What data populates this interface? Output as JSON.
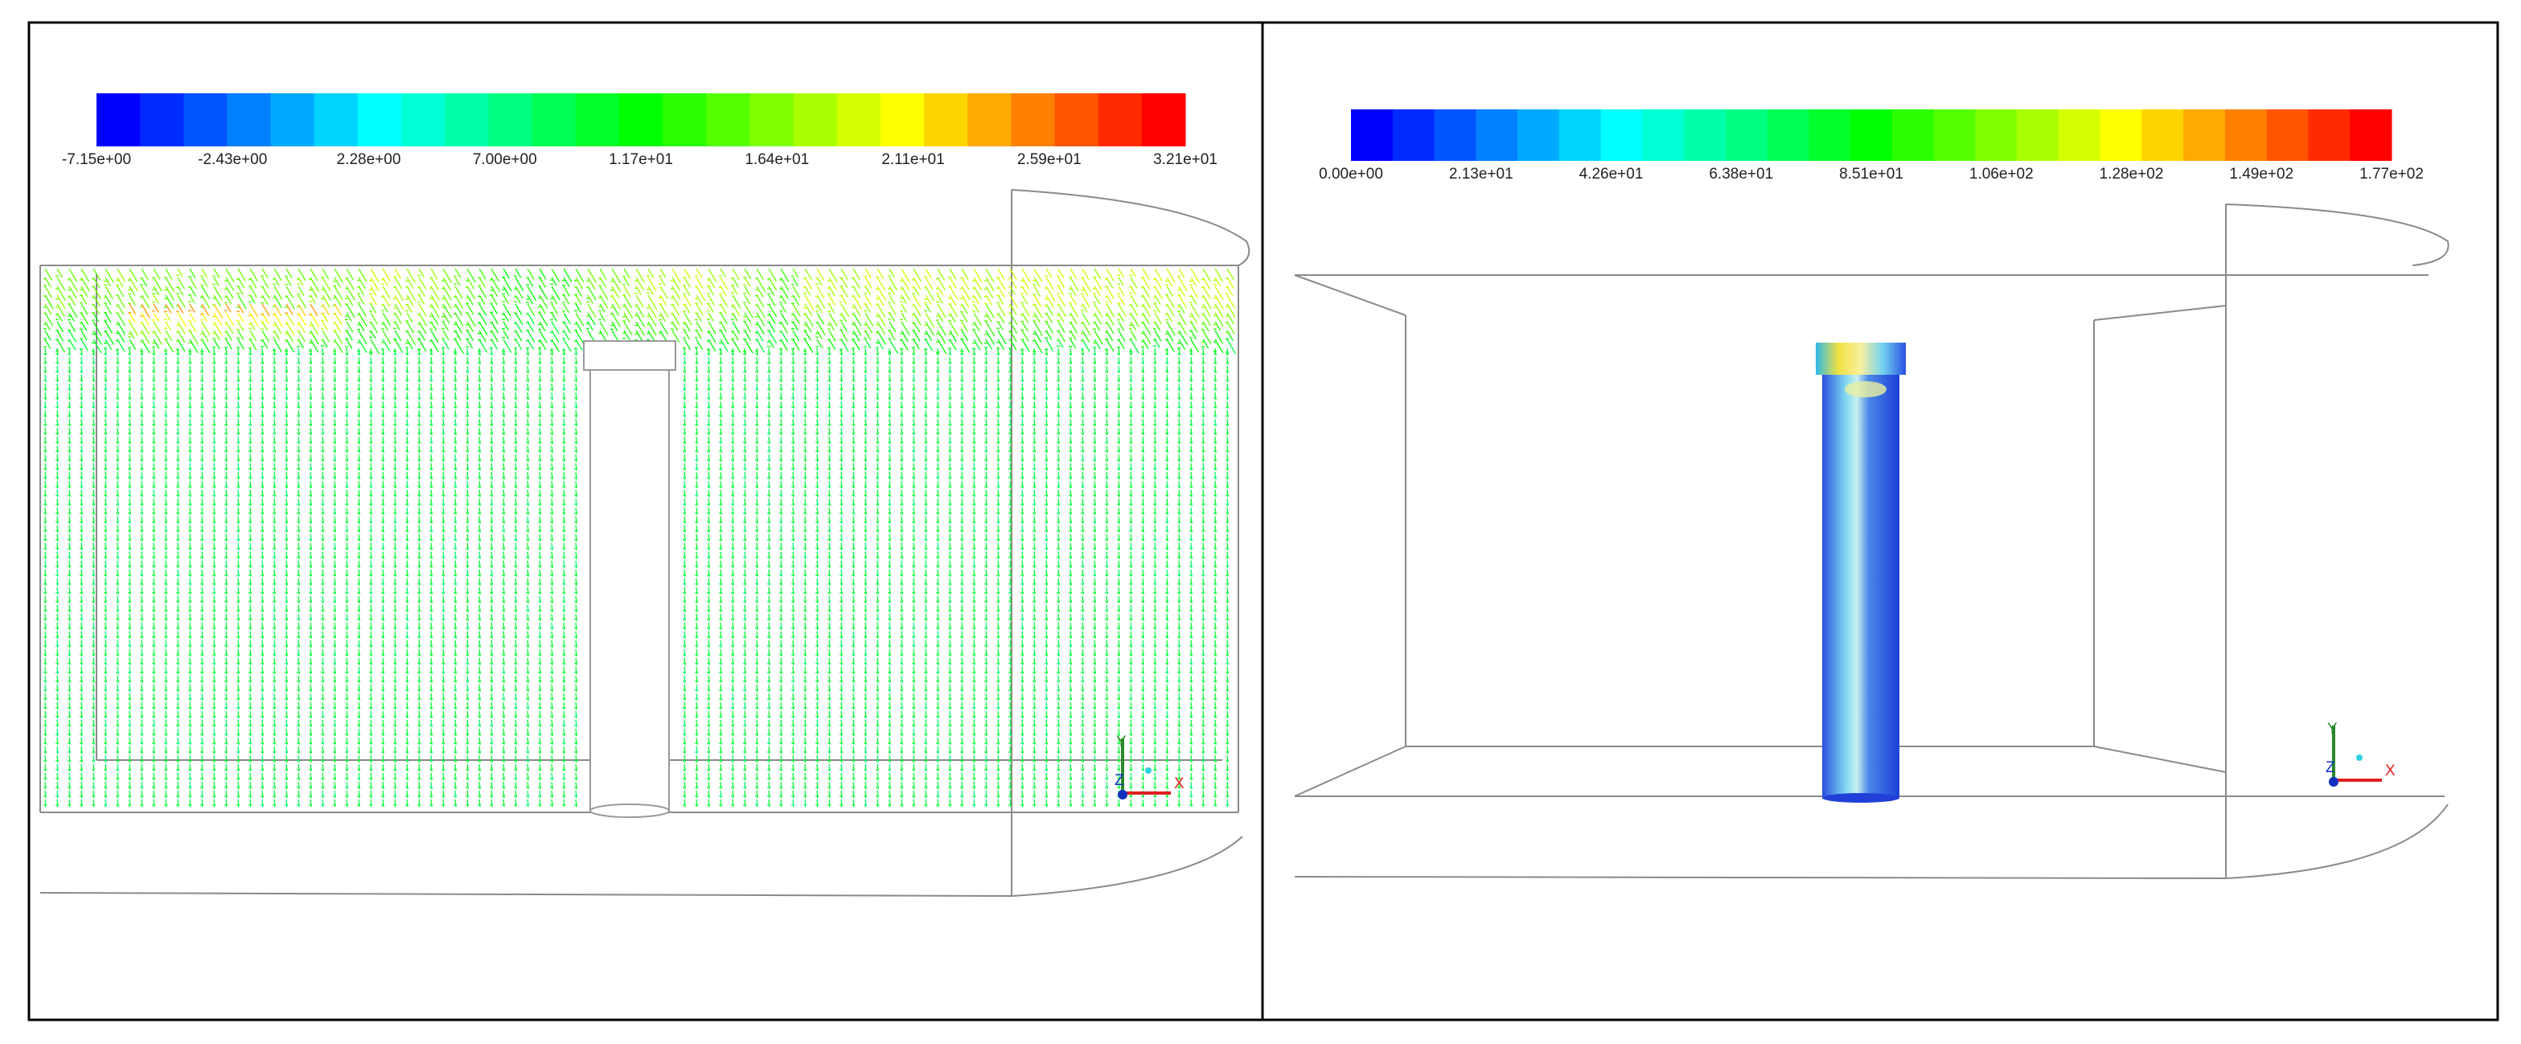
{
  "panels": [
    {
      "colorbar": {
        "labels": [
          "-7.15e+00",
          "-2.43e+00",
          "2.28e+00",
          "7.00e+00",
          "1.17e+01",
          "1.64e+01",
          "2.11e+01",
          "2.59e+01",
          "3.21e+01"
        ]
      },
      "axes": {
        "y": "Y",
        "z": "Z",
        "x": "X"
      }
    },
    {
      "colorbar": {
        "labels": [
          "0.00e+00",
          "2.13e+01",
          "4.26e+01",
          "6.38e+01",
          "8.51e+01",
          "1.06e+02",
          "1.28e+02",
          "1.49e+02",
          "1.77e+02"
        ]
      },
      "axes": {
        "y": "Y",
        "z": "Z",
        "x": "X"
      }
    }
  ]
}
